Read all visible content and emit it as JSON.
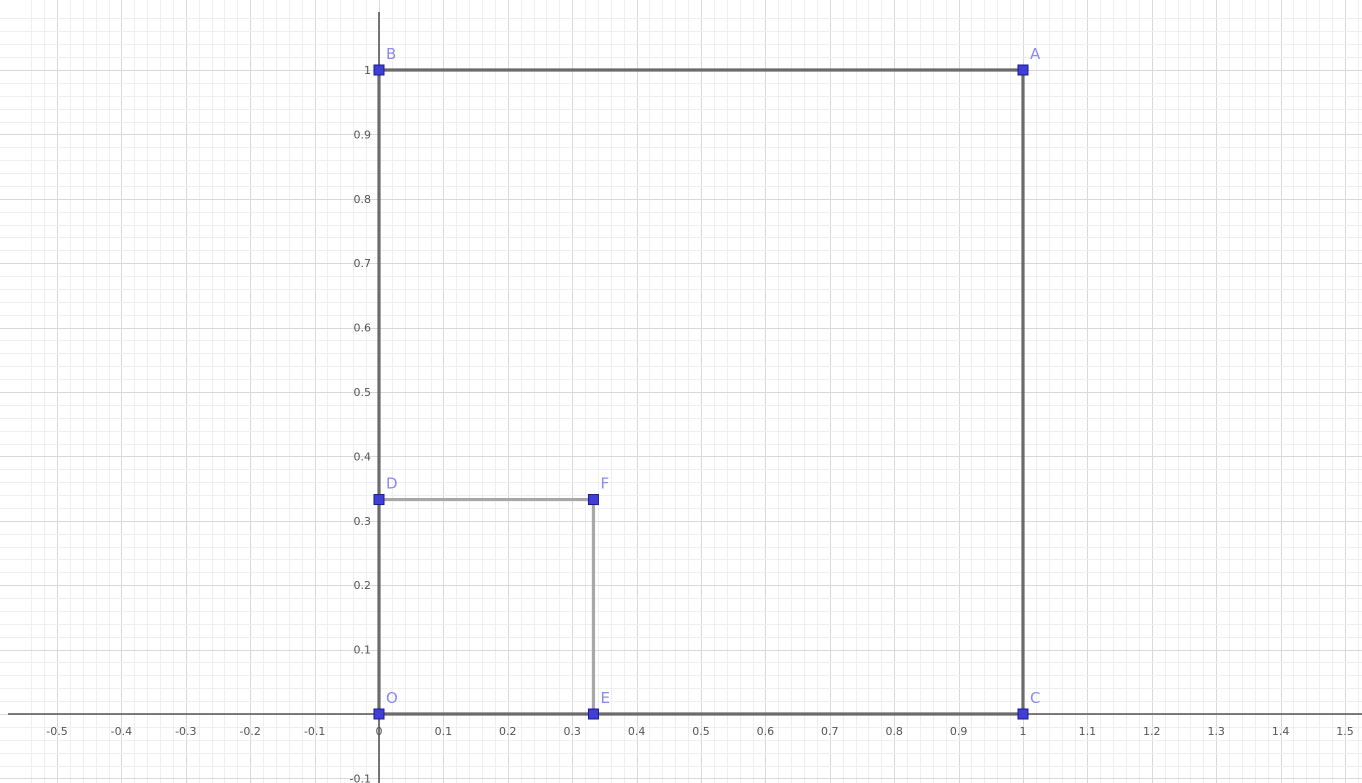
{
  "axes": {
    "x_range": [
      -0.55,
      1.55
    ],
    "y_range": [
      -0.12,
      1.09
    ],
    "x_ticks": [
      "-0.5",
      "-0.4",
      "-0.3",
      "-0.2",
      "-0.1",
      "0",
      "0.1",
      "0.2",
      "0.3",
      "0.4",
      "0.5",
      "0.6",
      "0.7",
      "0.8",
      "0.9",
      "1",
      "1.1",
      "1.2",
      "1.3",
      "1.4",
      "1.5"
    ],
    "y_ticks": [
      "-0.1",
      "0.1",
      "0.2",
      "0.3",
      "0.4",
      "0.5",
      "0.6",
      "0.7",
      "0.8",
      "0.9",
      "1"
    ],
    "major_step": 0.1,
    "minor_step": 0.02,
    "grid": true
  },
  "points": [
    {
      "label": "B",
      "x": 0,
      "y": 1
    },
    {
      "label": "A",
      "x": 1,
      "y": 1
    },
    {
      "label": "D",
      "x": 0,
      "y": 0.333
    },
    {
      "label": "F",
      "x": 0.333,
      "y": 0.333
    },
    {
      "label": "O",
      "x": 0,
      "y": 0
    },
    {
      "label": "E",
      "x": 0.333,
      "y": 0
    },
    {
      "label": "C",
      "x": 1,
      "y": 0
    }
  ],
  "segments": [
    {
      "from": "B",
      "to": "A",
      "style": "dark"
    },
    {
      "from": "A",
      "to": "C",
      "style": "dark"
    },
    {
      "from": "C",
      "to": "O",
      "style": "dark"
    },
    {
      "from": "O",
      "to": "B",
      "style": "dark"
    },
    {
      "from": "D",
      "to": "F",
      "style": "light"
    },
    {
      "from": "F",
      "to": "E",
      "style": "light"
    }
  ],
  "colors": {
    "dark_edge": "#6b6b6b",
    "light_edge": "#a8a8a8",
    "point_fill": "#3f3fd8",
    "point_label": "#8a8af0"
  }
}
